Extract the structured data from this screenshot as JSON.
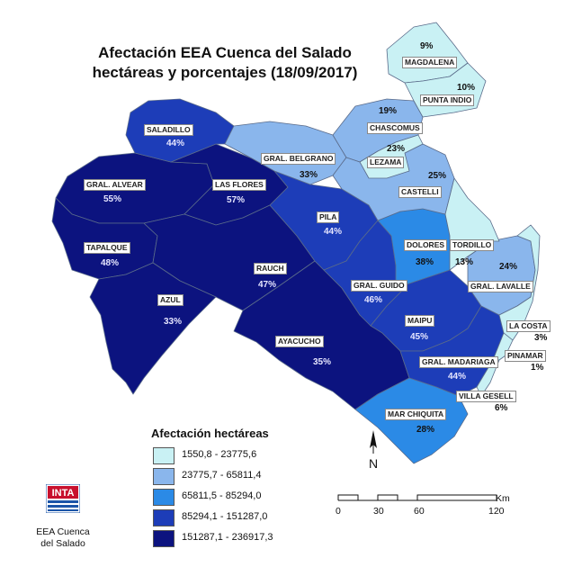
{
  "title_lines": [
    "Afectación EEA Cuenca del Salado",
    "hectáreas y porcentajes (18/09/2017)"
  ],
  "colors": {
    "c1": "#c9f1f4",
    "c2": "#8ab6ec",
    "c3": "#2b8ae6",
    "c4": "#1d3db8",
    "c5": "#0c137f",
    "water": "#ffffff",
    "border": "#5a6b8a"
  },
  "legend": {
    "title": "Afectación hectáreas",
    "classes": [
      {
        "range": "1550,8 - 23775,6",
        "color": "#c9f1f4"
      },
      {
        "range": "23775,7 - 65811,4",
        "color": "#8ab6ec"
      },
      {
        "range": "65811,5 - 85294,0",
        "color": "#2b8ae6"
      },
      {
        "range": "85294,1 - 151287,0",
        "color": "#1d3db8"
      },
      {
        "range": "151287,1 - 236917,3",
        "color": "#0c137f"
      }
    ]
  },
  "partidos": [
    {
      "name": "MAGDALENA",
      "pct": "9%",
      "class": 1
    },
    {
      "name": "PUNTA INDIO",
      "pct": "10%",
      "class": 1
    },
    {
      "name": "SALADILLO",
      "pct": "44%",
      "class": 4
    },
    {
      "name": "CHASCOMUS",
      "pct": "19%",
      "class": 2
    },
    {
      "name": "LEZAMA",
      "pct": "23%",
      "class": 1
    },
    {
      "name": "GRAL. BELGRANO",
      "pct": "33%",
      "class": 2
    },
    {
      "name": "CASTELLI",
      "pct": "25%",
      "class": 2
    },
    {
      "name": "GRAL. ALVEAR",
      "pct": "55%",
      "class": 5
    },
    {
      "name": "LAS FLORES",
      "pct": "57%",
      "class": 5
    },
    {
      "name": "PILA",
      "pct": "44%",
      "class": 4
    },
    {
      "name": "DOLORES",
      "pct": "38%",
      "class": 3
    },
    {
      "name": "TORDILLO",
      "pct": "13%",
      "class": 1
    },
    {
      "name": "TAPALQUE",
      "pct": "48%",
      "class": 5
    },
    {
      "name": "RAUCH",
      "pct": "47%",
      "class": 5
    },
    {
      "name": "GRAL. LAVALLE",
      "pct": "24%",
      "class": 2
    },
    {
      "name": "GRAL. GUIDO",
      "pct": "46%",
      "class": 4
    },
    {
      "name": "AZUL",
      "pct": "33%",
      "class": 5
    },
    {
      "name": "MAIPU",
      "pct": "45%",
      "class": 4
    },
    {
      "name": "LA COSTA",
      "pct": "3%",
      "class": 1
    },
    {
      "name": "AYACUCHO",
      "pct": "35%",
      "class": 5
    },
    {
      "name": "GRAL. MADARIAGA",
      "pct": "44%",
      "class": 4
    },
    {
      "name": "PINAMAR",
      "pct": "1%",
      "class": 1
    },
    {
      "name": "VILLA GESELL",
      "pct": "6%",
      "class": 1
    },
    {
      "name": "MAR CHIQUITA",
      "pct": "28%",
      "class": 3
    }
  ],
  "scale": {
    "unit": "Km",
    "ticks": [
      "0",
      "30",
      "60",
      "120"
    ]
  },
  "north_label": "N",
  "logo": {
    "brand": "INTA",
    "line1": "EEA Cuenca",
    "line2": "del Salado"
  }
}
